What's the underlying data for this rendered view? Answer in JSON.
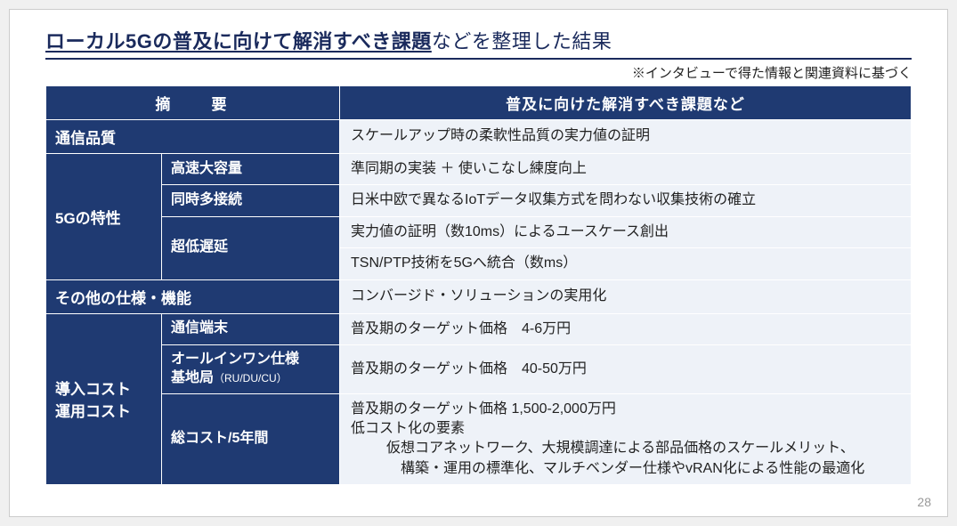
{
  "title_bold": "ローカル5Gの普及に向けて解消すべき課題",
  "title_rest": "などを整理した結果",
  "sub_note": "※インタビューで得た情報と関連資料に基づく",
  "page_num": "28",
  "header": {
    "col1": "摘　　要",
    "col2": "普及に向けた解消すべき課題など"
  },
  "rows": {
    "r1_cat": "通信品質",
    "r1_body": "スケールアップ時の柔軟性品質の実力値の証明",
    "r2_cat": "5Gの特性",
    "r2a_sub": "高速大容量",
    "r2a_body": "準同期の実装 ＋ 使いこなし練度向上",
    "r2b_sub": "同時多接続",
    "r2b_body": "日米中欧で異なるIoTデータ収集方式を問わない収集技術の確立",
    "r2c_sub": "超低遅延",
    "r2c_body1": "実力値の証明（数10ms）によるユースケース創出",
    "r2c_body2": "TSN/PTP技術を5Gへ統合（数ms）",
    "r3_cat": "その他の仕様・機能",
    "r3_body": "コンバージド・ソリューションの実用化",
    "r4_cat_line1": "導入コスト",
    "r4_cat_line2": "運用コスト",
    "r4a_sub": "通信端末",
    "r4a_body": "普及期のターゲット価格　4-6万円",
    "r4b_sub_line1": "オールインワン仕様",
    "r4b_sub_line2": "基地局",
    "r4b_sub_small": "（RU/DU/CU）",
    "r4b_body": "普及期のターゲット価格　40-50万円",
    "r4c_sub": "総コスト/5年間",
    "r4c_body_line1": "普及期のターゲット価格 1,500-2,000万円",
    "r4c_body_line2": "低コスト化の要素",
    "r4c_body_line3": "仮想コアネットワーク、大規模調達による部品価格のスケールメリット、",
    "r4c_body_line4": "構築・運用の標準化、マルチベンダー仕様やvRAN化による性能の最適化"
  },
  "colors": {
    "header_bg": "#1f3a72",
    "body_bg": "#eef2f8",
    "title_color": "#1a2a5c"
  }
}
